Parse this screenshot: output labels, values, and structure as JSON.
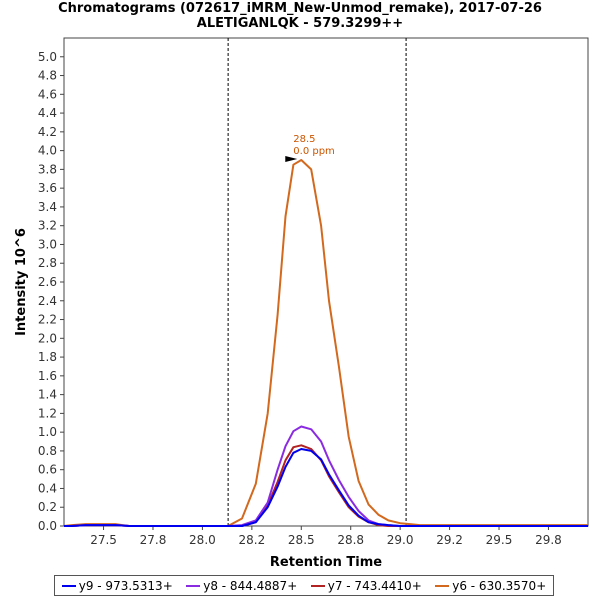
{
  "chart_data": {
    "type": "line",
    "title": "Chromatograms (072617_iMRM_New-Unmod_remake), 2017-07-26",
    "subtitle": "ALETIGANLQK - 579.3299++",
    "xlabel": "Retention Time",
    "ylabel": "Intensity 10^6",
    "xlim": [
      27.3,
      29.95
    ],
    "ylim": [
      0.0,
      5.2
    ],
    "x_ticks": [
      "27.5",
      "27.8",
      "28.0",
      "28.2",
      "28.5",
      "28.8",
      "29.0",
      "29.2",
      "29.5",
      "29.8"
    ],
    "x_tick_values": [
      27.5,
      27.75,
      28.0,
      28.25,
      28.5,
      28.75,
      29.0,
      29.25,
      29.5,
      29.75
    ],
    "y_ticks": [
      "0.0",
      "0.2",
      "0.4",
      "0.6",
      "0.8",
      "1.0",
      "1.2",
      "1.4",
      "1.6",
      "1.8",
      "2.0",
      "2.2",
      "2.4",
      "2.6",
      "2.8",
      "3.0",
      "3.2",
      "3.4",
      "3.6",
      "3.8",
      "4.0",
      "4.2",
      "4.4",
      "4.6",
      "4.8",
      "5.0"
    ],
    "y_tick_values": [
      0.0,
      0.2,
      0.4,
      0.6,
      0.8,
      1.0,
      1.2,
      1.4,
      1.6,
      1.8,
      2.0,
      2.2,
      2.4,
      2.6,
      2.8,
      3.0,
      3.2,
      3.4,
      3.6,
      3.8,
      4.0,
      4.2,
      4.4,
      4.6,
      4.8,
      5.0
    ],
    "vlines": [
      28.13,
      29.03
    ],
    "grid": false,
    "legend_position": "bottom",
    "x": [
      27.3,
      27.34,
      27.41,
      27.48,
      27.56,
      27.63,
      28.13,
      28.2,
      28.27,
      28.33,
      28.38,
      28.42,
      28.46,
      28.5,
      28.55,
      28.6,
      28.64,
      28.69,
      28.74,
      28.79,
      28.84,
      28.89,
      28.94,
      29.0,
      29.05,
      29.1,
      29.3,
      29.95
    ],
    "series": [
      {
        "name": "y9 - 973.5313+",
        "color": "#0000ee",
        "values": [
          0.0,
          0.0,
          0.01,
          0.01,
          0.01,
          0.0,
          0.0,
          0.0,
          0.04,
          0.2,
          0.42,
          0.63,
          0.78,
          0.82,
          0.8,
          0.71,
          0.55,
          0.38,
          0.22,
          0.11,
          0.04,
          0.02,
          0.01,
          0.0,
          0.0,
          0.0,
          0.0,
          0.0
        ]
      },
      {
        "name": "y8 - 844.4887+",
        "color": "#8a2be2",
        "values": [
          0.0,
          0.0,
          0.01,
          0.01,
          0.01,
          0.0,
          0.0,
          0.01,
          0.06,
          0.25,
          0.6,
          0.85,
          1.01,
          1.06,
          1.03,
          0.9,
          0.7,
          0.49,
          0.31,
          0.16,
          0.06,
          0.02,
          0.01,
          0.0,
          0.0,
          0.0,
          0.0,
          0.0
        ]
      },
      {
        "name": "y7 - 743.4410+",
        "color": "#b22222",
        "values": [
          0.0,
          0.0,
          0.01,
          0.01,
          0.01,
          0.0,
          0.0,
          0.0,
          0.04,
          0.22,
          0.47,
          0.7,
          0.84,
          0.86,
          0.82,
          0.7,
          0.53,
          0.36,
          0.2,
          0.1,
          0.04,
          0.01,
          0.0,
          0.0,
          0.0,
          0.0,
          0.0,
          0.0
        ]
      },
      {
        "name": "y6 - 630.3570+",
        "color": "#d2691e",
        "values": [
          0.0,
          0.01,
          0.02,
          0.02,
          0.02,
          0.0,
          0.0,
          0.08,
          0.45,
          1.2,
          2.25,
          3.3,
          3.85,
          3.9,
          3.8,
          3.2,
          2.4,
          1.7,
          0.95,
          0.48,
          0.23,
          0.12,
          0.06,
          0.03,
          0.02,
          0.01,
          0.01,
          0.01
        ]
      }
    ],
    "annotation": {
      "x": 28.5,
      "y": 3.9,
      "lines": [
        "28.5",
        "0.0 ppm"
      ],
      "color": "#cc5500"
    }
  }
}
